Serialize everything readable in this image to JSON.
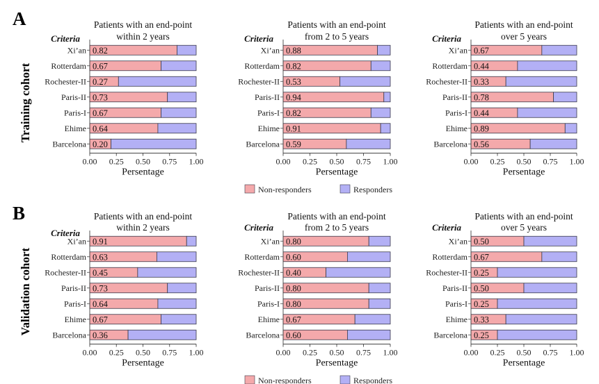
{
  "panels": [
    {
      "letter": "A",
      "cohort_label": "Training cohort"
    },
    {
      "letter": "B",
      "cohort_label": "Validation  cohort"
    }
  ],
  "criteria_header": "Criteria",
  "legend": {
    "non_responders": "Non-responders",
    "responders": "Responders"
  },
  "colors": {
    "non_responders": "#f4a9ab",
    "responders": "#b3b0f5",
    "bar_border": "#3a3a4a"
  },
  "chart_data": [
    {
      "type": "bar",
      "panel": "A",
      "title_lines": [
        "Patients with an end-point",
        "within 2 years"
      ],
      "xlabel": "Persentage",
      "xlim": [
        0,
        1
      ],
      "xticks": [
        "0.00",
        "0.25",
        "0.50",
        "0.75",
        "1.00"
      ],
      "categories": [
        "Xi’an",
        "Rotterdam",
        "Rochester-II",
        "Paris-II",
        "Paris-I",
        "Ehime",
        "Barcelona"
      ],
      "labels": [
        "0.82",
        "0.67",
        "0.27",
        "0.73",
        "0.67",
        "0.64",
        "0.20"
      ],
      "values": [
        0.82,
        0.67,
        0.27,
        0.73,
        0.67,
        0.64,
        0.2
      ]
    },
    {
      "type": "bar",
      "panel": "A",
      "title_lines": [
        "Patients with an end-point",
        "from 2 to 5 years"
      ],
      "xlabel": "Persentage",
      "xlim": [
        0,
        1
      ],
      "xticks": [
        "0.00",
        "0.25",
        "0.50",
        "0.75",
        "1.00"
      ],
      "categories": [
        "Xi’an",
        "Rotterdam",
        "Rochester-II",
        "Paris-II",
        "Paris-I",
        "Ehime",
        "Barcelona"
      ],
      "labels": [
        "0.88",
        "0.82",
        "0.53",
        "0.94",
        "0.82",
        "0.91",
        "0.59"
      ],
      "values": [
        0.88,
        0.82,
        0.53,
        0.94,
        0.82,
        0.91,
        0.59
      ]
    },
    {
      "type": "bar",
      "panel": "A",
      "title_lines": [
        "Patients with an end-point",
        "over 5 years"
      ],
      "xlabel": "Persentage",
      "xlim": [
        0,
        1
      ],
      "xticks": [
        "0.00",
        "0.25",
        "0.50",
        "0.75",
        "1.00"
      ],
      "categories": [
        "Xi’an",
        "Rotterdam",
        "Rochester-II",
        "Paris-II",
        "Paris-I",
        "Ehime",
        "Barcelona"
      ],
      "labels": [
        "0.67",
        "0.44",
        "0.33",
        "0.78",
        "0.44",
        "0.89",
        "0.56"
      ],
      "values": [
        0.67,
        0.44,
        0.33,
        0.78,
        0.44,
        0.89,
        0.56
      ]
    },
    {
      "type": "bar",
      "panel": "B",
      "title_lines": [
        "Patients with an end-point",
        "within 2 years"
      ],
      "xlabel": "Persentage",
      "xlim": [
        0,
        1
      ],
      "xticks": [
        "0.00",
        "0.25",
        "0.50",
        "0.75",
        "1.00"
      ],
      "categories": [
        "Xi’an",
        "Rotterdam",
        "Rochester-II",
        "Paris-II",
        "Paris-I",
        "Ehime",
        "Barcelona"
      ],
      "labels": [
        "0.91",
        "0.63",
        "0.45",
        "0.73",
        "0.64",
        "0.67",
        "0.36"
      ],
      "values": [
        0.91,
        0.63,
        0.45,
        0.73,
        0.64,
        0.67,
        0.36
      ]
    },
    {
      "type": "bar",
      "panel": "B",
      "title_lines": [
        "Patients with an end-point",
        "from 2 to 5 years"
      ],
      "xlabel": "Persentage",
      "xlim": [
        0,
        1
      ],
      "xticks": [
        "0.00",
        "0.25",
        "0.50",
        "0.75",
        "1.00"
      ],
      "categories": [
        "Xi’an",
        "Rotterdam",
        "Rochester-II",
        "Paris-II",
        "Paris-I",
        "Ehime",
        "Barcelona"
      ],
      "labels": [
        "0.80",
        "0.60",
        "0.40",
        "0.80",
        "0.80",
        "0.67",
        "0.60"
      ],
      "values": [
        0.8,
        0.6,
        0.4,
        0.8,
        0.8,
        0.67,
        0.6
      ]
    },
    {
      "type": "bar",
      "panel": "B",
      "title_lines": [
        "Patients with an end-point",
        "over 5 years"
      ],
      "xlabel": "Persentage",
      "xlim": [
        0,
        1
      ],
      "xticks": [
        "0.00",
        "0.25",
        "0.50",
        "0.75",
        "1.00"
      ],
      "categories": [
        "Xi’an",
        "Rotterdam",
        "Rochester-II",
        "Paris-II",
        "Paris-I",
        "Ehime",
        "Barcelona"
      ],
      "labels": [
        "0.50",
        "0.67",
        "0.25",
        "0.50",
        "0.25",
        "0.33",
        "0.25"
      ],
      "values": [
        0.5,
        0.67,
        0.25,
        0.5,
        0.25,
        0.33,
        0.25
      ]
    }
  ]
}
